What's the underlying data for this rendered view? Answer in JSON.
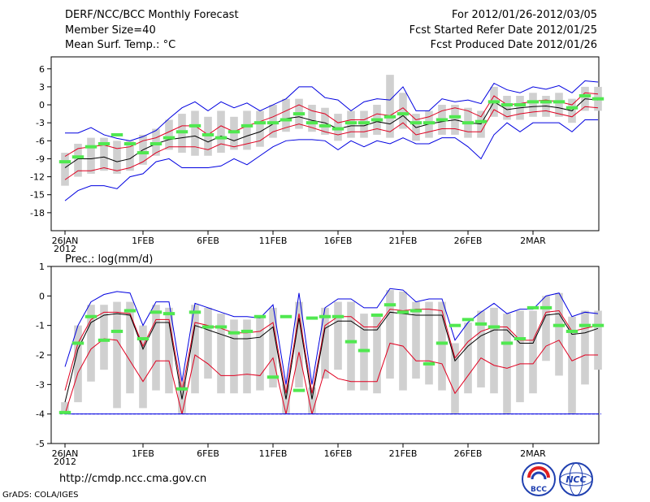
{
  "header": {
    "title": "DERF/NCC/BCC Monthly Forecast",
    "member_size": "Member Size=40",
    "variable": "Mean Surf. Temp.: °C",
    "period": "For 2012/01/26-2012/03/05",
    "started": "Fcst Started Refer Date 2012/01/25",
    "produced": "Fcst Produced Date 2012/01/26"
  },
  "footer": {
    "url": "http://cmdp.ncc.cma.gov.cn",
    "grads_credit": "GrADS: COLA/IGES",
    "logo_left_text": "BCC",
    "logo_right_text": "NCC"
  },
  "colors": {
    "box": "#d0d0d0",
    "median": "#50e850",
    "mean": "#000000",
    "inner": "#e00020",
    "outer": "#0000e0"
  },
  "chart_data": [
    {
      "type": "line",
      "title": "Mean Surf. Temp.: °C",
      "xlabel": "",
      "ylabel": "°C",
      "xlim": [
        0,
        40
      ],
      "ylim": [
        -21,
        8
      ],
      "y_ticks": [
        6,
        3,
        0,
        -3,
        -6,
        -9,
        -12,
        -15,
        -18
      ],
      "y_tick_labels": [
        "6",
        "3",
        "0",
        "-3",
        "-6",
        "-9",
        "-12",
        "-15",
        "-18"
      ],
      "x_ticks": [
        {
          "x": 0,
          "label": "26JAN",
          "sub": "2012"
        },
        {
          "x": 6,
          "label": "1FEB",
          "sub": ""
        },
        {
          "x": 11,
          "label": "6FEB",
          "sub": ""
        },
        {
          "x": 16,
          "label": "11FEB",
          "sub": ""
        },
        {
          "x": 21,
          "label": "16FEB",
          "sub": ""
        },
        {
          "x": 26,
          "label": "21FEB",
          "sub": ""
        },
        {
          "x": 31,
          "label": "26FEB",
          "sub": ""
        },
        {
          "x": 36,
          "label": "2MAR",
          "sub": ""
        }
      ],
      "series": [
        {
          "name": "max",
          "color": "#0000e0",
          "values": [
            -4.7,
            -4.7,
            -3.8,
            -5.0,
            -5.6,
            -6.0,
            -5.3,
            -4.3,
            -2.3,
            -0.5,
            0.5,
            -1.0,
            0.5,
            -0.5,
            0.3,
            -1.0,
            0.0,
            1.0,
            3.0,
            3.0,
            1.2,
            0.8,
            -1.0,
            0.5,
            1.0,
            0.8,
            3.0,
            -1.0,
            -1.0,
            1.0,
            0.5,
            0.8,
            0.2,
            3.6,
            2.5,
            2.0,
            3.0,
            2.6,
            3.2,
            2.0,
            4.0,
            3.8
          ]
        },
        {
          "name": "upper",
          "color": "#e00020",
          "values": [
            -8.6,
            -7.3,
            -7.0,
            -6.7,
            -7.3,
            -7.0,
            -6.0,
            -5.5,
            -4.5,
            -3.5,
            -3.5,
            -5.0,
            -3.5,
            -4.5,
            -3.5,
            -2.8,
            -2.0,
            -1.0,
            0.0,
            -1.0,
            -1.5,
            -3.0,
            -2.5,
            -2.5,
            -1.5,
            -1.8,
            -0.5,
            -2.5,
            -2.0,
            -1.0,
            -0.5,
            -1.0,
            -2.0,
            1.5,
            0.0,
            0.2,
            0.6,
            0.8,
            0.5,
            0.0,
            2.0,
            1.8
          ]
        },
        {
          "name": "mean",
          "color": "#000000",
          "values": [
            -10.5,
            -9.0,
            -9.0,
            -8.7,
            -9.5,
            -9.0,
            -7.5,
            -6.5,
            -5.8,
            -5.5,
            -5.2,
            -6.2,
            -5.2,
            -6.0,
            -5.2,
            -4.5,
            -3.2,
            -2.3,
            -2.0,
            -2.6,
            -3.0,
            -4.0,
            -3.5,
            -3.5,
            -2.8,
            -3.2,
            -1.8,
            -3.8,
            -3.2,
            -2.8,
            -2.5,
            -3.0,
            -3.2,
            0.5,
            -0.8,
            -0.5,
            -0.3,
            -0.2,
            -0.5,
            -1.0,
            1.0,
            0.8
          ]
        },
        {
          "name": "lower",
          "color": "#e00020",
          "values": [
            -12.5,
            -11.0,
            -11.0,
            -10.5,
            -11.0,
            -10.5,
            -9.5,
            -8.0,
            -7.0,
            -7.0,
            -7.0,
            -7.5,
            -6.5,
            -7.0,
            -6.5,
            -6.0,
            -4.5,
            -3.8,
            -3.2,
            -3.8,
            -4.5,
            -5.0,
            -4.5,
            -4.5,
            -4.0,
            -4.5,
            -3.0,
            -5.0,
            -4.5,
            -4.0,
            -4.0,
            -4.5,
            -4.5,
            -0.8,
            -2.0,
            -1.5,
            -1.2,
            -1.0,
            -1.5,
            -2.0,
            -0.3,
            -0.5
          ]
        },
        {
          "name": "min",
          "color": "#0000e0",
          "values": [
            -16.0,
            -14.3,
            -13.5,
            -13.5,
            -14.0,
            -12.0,
            -11.5,
            -9.5,
            -9.0,
            -10.5,
            -10.5,
            -10.5,
            -10.2,
            -9.0,
            -10.0,
            -8.5,
            -7.0,
            -6.0,
            -5.8,
            -5.8,
            -6.0,
            -7.5,
            -6.0,
            -7.0,
            -6.0,
            -6.5,
            -5.5,
            -6.5,
            -6.5,
            -5.5,
            -5.5,
            -7.0,
            -9.0,
            -5.0,
            -3.0,
            -4.5,
            -3.0,
            -3.0,
            -3.0,
            -4.5,
            -2.5,
            -2.5
          ]
        }
      ],
      "boxes_lo": [
        -13.5,
        -12.0,
        -11.5,
        -11.0,
        -11.5,
        -11.0,
        -10.0,
        -8.5,
        -7.5,
        -8.0,
        -8.5,
        -8.5,
        -8.0,
        -7.5,
        -7.5,
        -7.0,
        -5.5,
        -4.5,
        -4.0,
        -4.5,
        -5.0,
        -6.0,
        -5.5,
        -5.5,
        -5.0,
        -5.5,
        -4.0,
        -6.0,
        -5.5,
        -5.0,
        -5.0,
        -5.5,
        -5.5,
        -2.0,
        -2.5,
        -2.5,
        -2.0,
        -2.0,
        -2.0,
        -3.0,
        -1.0,
        -1.0
      ],
      "boxes_hi": [
        -8.0,
        -6.5,
        -5.5,
        -5.5,
        -6.0,
        -6.0,
        -5.0,
        -4.0,
        -2.5,
        -1.5,
        -1.0,
        -2.0,
        -1.0,
        -2.0,
        -1.0,
        -1.0,
        0.0,
        1.0,
        1.0,
        0.0,
        -0.5,
        -1.5,
        -1.0,
        -1.0,
        0.0,
        5.0,
        2.0,
        -1.5,
        -1.0,
        0.0,
        0.0,
        -0.5,
        -1.0,
        3.0,
        1.5,
        1.5,
        2.0,
        1.5,
        2.0,
        1.0,
        3.0,
        3.0
      ],
      "medians": [
        -9.5,
        -8.7,
        -7.0,
        -6.5,
        -5.0,
        -6.5,
        -8.0,
        -6.5,
        -5.5,
        -4.5,
        -3.5,
        -5.0,
        -5.5,
        -4.5,
        -3.5,
        -3.0,
        -3.0,
        -2.5,
        -1.5,
        -3.0,
        -3.5,
        -4.0,
        -3.0,
        -3.0,
        -2.5,
        -2.0,
        -1.5,
        -3.0,
        -3.0,
        -2.5,
        -2.0,
        -3.0,
        -2.8,
        0.5,
        0.0,
        0.0,
        0.5,
        0.5,
        0.5,
        -0.5,
        1.5,
        1.0
      ]
    },
    {
      "type": "line",
      "title": "Prec.: log(mm/d)",
      "xlabel": "",
      "ylabel": "log(mm/d)",
      "xlim": [
        0,
        40
      ],
      "ylim": [
        -5,
        1
      ],
      "y_ticks": [
        1,
        0,
        -1,
        -2,
        -3,
        -4,
        -5
      ],
      "y_tick_labels": [
        "1",
        "0",
        "-1",
        "-2",
        "-3",
        "-4",
        "-5"
      ],
      "x_ticks": [
        {
          "x": 0,
          "label": "26JAN",
          "sub": "2012"
        },
        {
          "x": 6,
          "label": "1FEB",
          "sub": ""
        },
        {
          "x": 11,
          "label": "6FEB",
          "sub": ""
        },
        {
          "x": 16,
          "label": "11FEB",
          "sub": ""
        },
        {
          "x": 21,
          "label": "16FEB",
          "sub": ""
        },
        {
          "x": 26,
          "label": "21FEB",
          "sub": ""
        },
        {
          "x": 31,
          "label": "26FEB",
          "sub": ""
        },
        {
          "x": 36,
          "label": "2MAR",
          "sub": ""
        }
      ],
      "baseline": -4,
      "series": [
        {
          "name": "max",
          "color": "#0000e0",
          "values": [
            -2.4,
            -1.0,
            -0.2,
            0.05,
            0.15,
            0.1,
            -1.0,
            -0.2,
            -0.2,
            -2.9,
            -0.25,
            -0.4,
            -0.55,
            -0.7,
            -0.7,
            -0.75,
            -0.3,
            -3.0,
            0.1,
            -3.0,
            -0.4,
            -0.1,
            -0.1,
            -0.4,
            -0.4,
            0.25,
            0.2,
            -0.2,
            -0.1,
            -0.1,
            -1.5,
            -0.9,
            -0.55,
            -0.25,
            -0.6,
            -0.45,
            -0.45,
            0.0,
            0.1,
            -0.7,
            -0.55,
            -0.6
          ]
        },
        {
          "name": "upper",
          "color": "#e00020",
          "values": [
            -3.2,
            -1.6,
            -0.8,
            -0.55,
            -0.55,
            -0.6,
            -1.7,
            -0.8,
            -0.8,
            -3.2,
            -0.9,
            -1.0,
            -1.1,
            -1.25,
            -1.25,
            -1.2,
            -0.9,
            -3.3,
            -0.6,
            -3.3,
            -1.0,
            -0.7,
            -0.7,
            -1.05,
            -1.05,
            -0.45,
            -0.5,
            -0.45,
            -0.45,
            -0.5,
            -2.1,
            -1.55,
            -1.2,
            -1.05,
            -1.05,
            -1.5,
            -1.5,
            -0.55,
            -0.5,
            -1.2,
            -1.1,
            -1.0
          ]
        },
        {
          "name": "mean",
          "color": "#000000",
          "values": [
            -3.6,
            -1.8,
            -0.9,
            -0.65,
            -0.6,
            -0.65,
            -1.8,
            -0.9,
            -0.9,
            -3.5,
            -1.0,
            -1.15,
            -1.3,
            -1.45,
            -1.45,
            -1.4,
            -1.05,
            -3.5,
            -0.75,
            -3.5,
            -1.1,
            -0.85,
            -0.85,
            -1.15,
            -1.15,
            -0.55,
            -0.6,
            -0.65,
            -0.65,
            -0.65,
            -2.2,
            -1.7,
            -1.35,
            -1.15,
            -1.15,
            -1.6,
            -1.6,
            -0.65,
            -0.6,
            -1.3,
            -1.25,
            -1.1
          ]
        },
        {
          "name": "lower",
          "color": "#e00020",
          "values": [
            -4.0,
            -2.6,
            -1.8,
            -1.45,
            -1.5,
            -2.2,
            -2.9,
            -2.2,
            -2.2,
            -4.0,
            -2.0,
            -2.3,
            -2.7,
            -2.7,
            -2.65,
            -2.7,
            -2.1,
            -4.0,
            -1.9,
            -4.0,
            -2.5,
            -2.8,
            -2.9,
            -2.9,
            -2.9,
            -1.6,
            -1.7,
            -2.2,
            -2.2,
            -2.3,
            -3.3,
            -2.7,
            -2.1,
            -2.35,
            -2.45,
            -2.3,
            -2.3,
            -1.7,
            -1.5,
            -2.2,
            -2.0,
            -2.0
          ]
        },
        {
          "name": "min",
          "color": "#0000e0",
          "values": [
            -4.0,
            -4.0,
            -4.0,
            -4.0,
            -4.0,
            -4.0,
            -4.0,
            -4.0,
            -4.0,
            -4.0,
            -4.0,
            -4.0,
            -4.0,
            -4.0,
            -4.0,
            -4.0,
            -4.0,
            -4.0,
            -4.0,
            -4.0,
            -4.0,
            -4.0,
            -4.0,
            -4.0,
            -4.0,
            -4.0,
            -4.0,
            -4.0,
            -4.0,
            -4.0,
            -4.0,
            -4.0,
            -4.0,
            -4.0,
            -4.0,
            -4.0,
            -4.0,
            -4.0,
            -4.0,
            -4.0,
            -4.0,
            -4.0
          ]
        },
        {
          "name": "median",
          "color": "#50e850",
          "values": [
            -3.95,
            -1.6,
            -0.7,
            -1.5,
            -1.2,
            -0.5,
            -1.45,
            -0.55,
            -0.6,
            -3.15,
            -0.55,
            -1.05,
            -1.05,
            -1.25,
            -1.2,
            -0.7,
            -2.75,
            -0.7,
            -3.2,
            -0.75,
            -0.7,
            -0.7,
            -1.55,
            -1.85,
            -0.65,
            -0.3,
            -0.55,
            -0.5,
            -2.3,
            -1.6,
            -1.0,
            -0.8,
            -0.95,
            -1.05,
            -1.6,
            -1.45,
            -0.4,
            -0.4,
            -1.0,
            -1.2,
            -1.0,
            -1.0
          ]
        }
      ],
      "boxes_lo": [
        -4.0,
        -3.6,
        -2.9,
        -2.5,
        -3.8,
        -3.3,
        -3.8,
        -3.2,
        -3.3,
        -4.0,
        -3.3,
        -2.8,
        -3.3,
        -3.3,
        -3.3,
        -3.2,
        -3.1,
        -4.0,
        -3.1,
        -4.0,
        -2.8,
        -2.5,
        -3.2,
        -3.2,
        -3.3,
        -2.8,
        -3.2,
        -2.8,
        -3.0,
        -3.2,
        -4.0,
        -3.3,
        -3.1,
        -3.3,
        -4.0,
        -3.6,
        -3.3,
        -2.2,
        -2.7,
        -4.0,
        -3.0,
        -2.5
      ],
      "boxes_hi": [
        -3.6,
        -1.0,
        -0.3,
        -0.3,
        -0.2,
        -0.2,
        -1.0,
        -0.3,
        -0.4,
        -2.9,
        -0.3,
        -0.4,
        -0.6,
        -0.8,
        -0.8,
        -0.7,
        -0.4,
        -3.0,
        -0.2,
        -3.1,
        -0.4,
        -0.2,
        -0.2,
        -0.6,
        -0.6,
        0.2,
        0.15,
        -0.2,
        -0.2,
        -0.2,
        -1.6,
        -0.9,
        -0.5,
        -0.4,
        -0.6,
        -0.5,
        -0.5,
        0.0,
        0.1,
        -0.7,
        -0.5,
        -0.5
      ]
    }
  ]
}
